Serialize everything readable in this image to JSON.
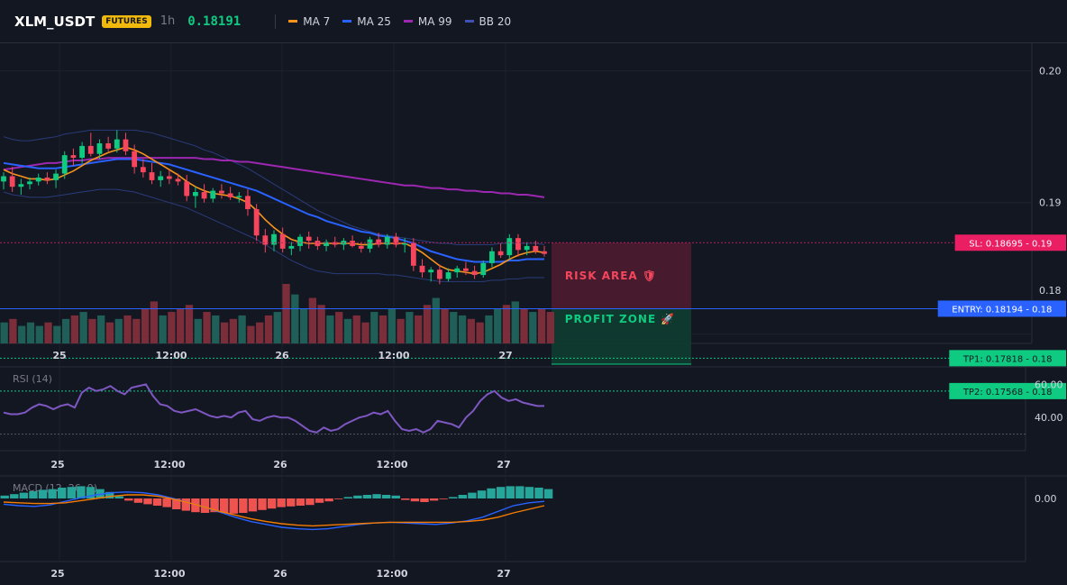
{
  "header": {
    "symbol": "XLM_USDT",
    "badge": "FUTURES",
    "timeframe": "1h",
    "last_price": "0.18191",
    "legend": [
      {
        "label": "MA 7",
        "color": "#f7931a"
      },
      {
        "label": "MA 25",
        "color": "#2962ff"
      },
      {
        "label": "MA 99",
        "color": "#9c27b0"
      },
      {
        "label": "BB 20",
        "color": "#3f51b5"
      }
    ]
  },
  "colors": {
    "up": "#0ecb81",
    "down": "#f6465d",
    "vol_up": "#1f5f58",
    "vol_down": "#7b2d3a",
    "rsi": "#7e57c2",
    "macd_line": "#2962ff",
    "signal_line": "#f57c00"
  },
  "price_axis": {
    "ticks": [
      "0.20",
      "0.19",
      "0.18"
    ]
  },
  "time_axis": {
    "labels": [
      "25",
      "12:00",
      "26",
      "12:00",
      "27"
    ]
  },
  "levels": {
    "sl": {
      "label": "SL: 0.18695",
      "axis": "0.19",
      "value": 0.18695
    },
    "entry": {
      "label": "ENTRY: 0.18194",
      "axis": "0.18",
      "value": 0.18194
    },
    "tp1": {
      "label": "TP1: 0.17818",
      "axis": "0.18",
      "value": 0.17818
    },
    "tp2": {
      "label": "TP2: 0.17568",
      "axis": "0.18",
      "value": 0.17568
    }
  },
  "zones": {
    "risk": "RISK AREA 🛡",
    "profit": "PROFIT ZONE 🚀"
  },
  "rsi": {
    "label": "RSI (14)",
    "ticks": [
      "60.00",
      "40.00"
    ]
  },
  "macd": {
    "label": "MACD (12, 26, 9)",
    "ticks": [
      "0.00"
    ]
  },
  "chart_data": {
    "type": "candlestick",
    "title": "",
    "candles": [
      [
        0.1916,
        0.1923,
        0.191,
        0.192
      ],
      [
        0.192,
        0.1927,
        0.1908,
        0.1912
      ],
      [
        0.1912,
        0.1918,
        0.1906,
        0.1914
      ],
      [
        0.1914,
        0.1919,
        0.191,
        0.1916
      ],
      [
        0.1916,
        0.1922,
        0.1913,
        0.1919
      ],
      [
        0.1919,
        0.1923,
        0.1914,
        0.1917
      ],
      [
        0.1917,
        0.1925,
        0.1911,
        0.1922
      ],
      [
        0.1922,
        0.1939,
        0.1918,
        0.1936
      ],
      [
        0.1936,
        0.1941,
        0.1928,
        0.1934
      ],
      [
        0.1934,
        0.1946,
        0.193,
        0.1943
      ],
      [
        0.1943,
        0.1953,
        0.1935,
        0.1937
      ],
      [
        0.1937,
        0.1948,
        0.1933,
        0.1945
      ],
      [
        0.1945,
        0.195,
        0.1939,
        0.1941
      ],
      [
        0.1941,
        0.1955,
        0.1938,
        0.1948
      ],
      [
        0.1948,
        0.1953,
        0.1936,
        0.1939
      ],
      [
        0.1939,
        0.1944,
        0.1922,
        0.1927
      ],
      [
        0.1927,
        0.1933,
        0.1919,
        0.1923
      ],
      [
        0.1923,
        0.193,
        0.1914,
        0.1917
      ],
      [
        0.1917,
        0.1924,
        0.1912,
        0.192
      ],
      [
        0.192,
        0.1925,
        0.1914,
        0.1918
      ],
      [
        0.1918,
        0.1922,
        0.1913,
        0.1916
      ],
      [
        0.1916,
        0.1921,
        0.1901,
        0.1905
      ],
      [
        0.1905,
        0.1912,
        0.1896,
        0.1908
      ],
      [
        0.1908,
        0.1914,
        0.19,
        0.1903
      ],
      [
        0.1903,
        0.1911,
        0.19,
        0.1909
      ],
      [
        0.1909,
        0.1914,
        0.1903,
        0.1907
      ],
      [
        0.1907,
        0.1912,
        0.1902,
        0.1904
      ],
      [
        0.1904,
        0.1908,
        0.19,
        0.1905
      ],
      [
        0.1905,
        0.191,
        0.189,
        0.1895
      ],
      [
        0.1895,
        0.1899,
        0.1871,
        0.1875
      ],
      [
        0.1875,
        0.188,
        0.1862,
        0.1868
      ],
      [
        0.1868,
        0.1879,
        0.1863,
        0.1876
      ],
      [
        0.1876,
        0.1881,
        0.1862,
        0.1865
      ],
      [
        0.1865,
        0.187,
        0.186,
        0.1867
      ],
      [
        0.1867,
        0.1876,
        0.1863,
        0.1874
      ],
      [
        0.1874,
        0.1878,
        0.1865,
        0.1871
      ],
      [
        0.1871,
        0.1874,
        0.1864,
        0.1867
      ],
      [
        0.1867,
        0.1872,
        0.1863,
        0.187
      ],
      [
        0.187,
        0.1874,
        0.1866,
        0.1868
      ],
      [
        0.1868,
        0.1873,
        0.1864,
        0.1871
      ],
      [
        0.1871,
        0.1875,
        0.1866,
        0.1867
      ],
      [
        0.1867,
        0.187,
        0.1862,
        0.1865
      ],
      [
        0.1865,
        0.1874,
        0.1862,
        0.1872
      ],
      [
        0.1872,
        0.1877,
        0.1866,
        0.1868
      ],
      [
        0.1868,
        0.1876,
        0.1865,
        0.1874
      ],
      [
        0.1874,
        0.1877,
        0.1866,
        0.1868
      ],
      [
        0.1868,
        0.1873,
        0.1862,
        0.1869
      ],
      [
        0.1869,
        0.1873,
        0.1848,
        0.1852
      ],
      [
        0.1852,
        0.1857,
        0.1843,
        0.1847
      ],
      [
        0.1847,
        0.1851,
        0.184,
        0.1849
      ],
      [
        0.1849,
        0.1853,
        0.1838,
        0.1842
      ],
      [
        0.1842,
        0.185,
        0.184,
        0.1847
      ],
      [
        0.1847,
        0.1852,
        0.1843,
        0.185
      ],
      [
        0.185,
        0.1855,
        0.1845,
        0.1848
      ],
      [
        0.1848,
        0.1852,
        0.1842,
        0.1845
      ],
      [
        0.1845,
        0.1856,
        0.1843,
        0.1854
      ],
      [
        0.1854,
        0.1866,
        0.1851,
        0.1863
      ],
      [
        0.1863,
        0.1869,
        0.1858,
        0.186
      ],
      [
        0.186,
        0.1876,
        0.1857,
        0.1873
      ],
      [
        0.1873,
        0.1876,
        0.1859,
        0.1864
      ],
      [
        0.1864,
        0.187,
        0.186,
        0.1867
      ],
      [
        0.1867,
        0.1871,
        0.1861,
        0.1863
      ],
      [
        0.1863,
        0.1867,
        0.1859,
        0.1861
      ]
    ],
    "volume": [
      6,
      7,
      5,
      6,
      5,
      6,
      5,
      7,
      8,
      9,
      7,
      8,
      6,
      7,
      8,
      7,
      10,
      12,
      8,
      9,
      10,
      11,
      7,
      9,
      8,
      6,
      7,
      8,
      5,
      6,
      8,
      9,
      17,
      14,
      10,
      13,
      11,
      8,
      9,
      7,
      8,
      6,
      9,
      8,
      10,
      7,
      9,
      8,
      11,
      13,
      10,
      9,
      8,
      7,
      6,
      8,
      10,
      11,
      12,
      10,
      9,
      10,
      9
    ],
    "ma7": [
      0.1925,
      0.1922,
      0.192,
      0.1918,
      0.1918,
      0.1917,
      0.1918,
      0.1921,
      0.1924,
      0.1928,
      0.1932,
      0.1935,
      0.1938,
      0.194,
      0.1942,
      0.194,
      0.1937,
      0.1933,
      0.1929,
      0.1925,
      0.1921,
      0.1916,
      0.1912,
      0.1909,
      0.1907,
      0.1906,
      0.1905,
      0.1903,
      0.19,
      0.1894,
      0.1887,
      0.1881,
      0.1876,
      0.1872,
      0.187,
      0.1869,
      0.1869,
      0.1869,
      0.1869,
      0.1869,
      0.1869,
      0.1868,
      0.1868,
      0.1869,
      0.1869,
      0.1869,
      0.1869,
      0.1866,
      0.1862,
      0.1857,
      0.1852,
      0.1849,
      0.1848,
      0.1847,
      0.1846,
      0.1847,
      0.185,
      0.1853,
      0.1857,
      0.186,
      0.1862,
      0.1863,
      0.1862
    ],
    "ma25": [
      0.193,
      0.1929,
      0.1928,
      0.1927,
      0.1926,
      0.1926,
      0.1926,
      0.1927,
      0.1928,
      0.1929,
      0.193,
      0.1931,
      0.1932,
      0.1933,
      0.1933,
      0.1933,
      0.1932,
      0.1931,
      0.193,
      0.1929,
      0.1927,
      0.1925,
      0.1923,
      0.1921,
      0.1919,
      0.1917,
      0.1915,
      0.1913,
      0.1911,
      0.1909,
      0.1906,
      0.1903,
      0.19,
      0.1897,
      0.1894,
      0.1891,
      0.1889,
      0.1886,
      0.1884,
      0.1882,
      0.188,
      0.1878,
      0.1877,
      0.1875,
      0.1874,
      0.1873,
      0.1871,
      0.1869,
      0.1866,
      0.1863,
      0.1861,
      0.1859,
      0.1857,
      0.1856,
      0.1855,
      0.1855,
      0.1855,
      0.1855,
      0.1856,
      0.1856,
      0.1857,
      0.1857,
      0.1857
    ],
    "ma99": [
      0.1925,
      0.1926,
      0.1927,
      0.1928,
      0.1929,
      0.193,
      0.193,
      0.1931,
      0.1932,
      0.1932,
      0.1933,
      0.1933,
      0.1934,
      0.1934,
      0.1934,
      0.1934,
      0.1934,
      0.1934,
      0.1934,
      0.1934,
      0.1934,
      0.1934,
      0.1934,
      0.1933,
      0.1933,
      0.1932,
      0.1932,
      0.1931,
      0.1931,
      0.193,
      0.1929,
      0.1928,
      0.1927,
      0.1926,
      0.1925,
      0.1924,
      0.1923,
      0.1922,
      0.1921,
      0.192,
      0.1919,
      0.1918,
      0.1917,
      0.1916,
      0.1915,
      0.1914,
      0.1913,
      0.1913,
      0.1912,
      0.1911,
      0.1911,
      0.191,
      0.191,
      0.1909,
      0.1909,
      0.1908,
      0.1908,
      0.1907,
      0.1907,
      0.1906,
      0.1906,
      0.1905,
      0.1904
    ],
    "bb_upper": [
      0.195,
      0.1948,
      0.1947,
      0.1947,
      0.1948,
      0.1949,
      0.195,
      0.1952,
      0.1953,
      0.1954,
      0.1955,
      0.1955,
      0.1955,
      0.1955,
      0.1955,
      0.1955,
      0.1954,
      0.1953,
      0.1951,
      0.1949,
      0.1947,
      0.1945,
      0.1943,
      0.194,
      0.1938,
      0.1935,
      0.1932,
      0.1929,
      0.1926,
      0.1922,
      0.1918,
      0.1914,
      0.191,
      0.1906,
      0.1902,
      0.1898,
      0.1894,
      0.1891,
      0.1888,
      0.1885,
      0.1882,
      0.188,
      0.1878,
      0.1876,
      0.1875,
      0.1874,
      0.1873,
      0.1872,
      0.1871,
      0.187,
      0.1869,
      0.1869,
      0.1868,
      0.1868,
      0.1868,
      0.1868,
      0.1868,
      0.1869,
      0.1869,
      0.1869,
      0.1869,
      0.1869,
      0.1868
    ],
    "bb_lower": [
      0.1908,
      0.1906,
      0.1905,
      0.1904,
      0.1904,
      0.1904,
      0.1905,
      0.1906,
      0.1907,
      0.1908,
      0.1909,
      0.191,
      0.191,
      0.191,
      0.1909,
      0.1908,
      0.1906,
      0.1904,
      0.1902,
      0.19,
      0.1898,
      0.1896,
      0.1893,
      0.189,
      0.1887,
      0.1884,
      0.1881,
      0.1878,
      0.1875,
      0.1872,
      0.1868,
      0.1864,
      0.186,
      0.1856,
      0.1853,
      0.185,
      0.1848,
      0.1847,
      0.1846,
      0.1846,
      0.1846,
      0.1846,
      0.1846,
      0.1846,
      0.1845,
      0.1845,
      0.1844,
      0.1843,
      0.1842,
      0.1841,
      0.184,
      0.184,
      0.184,
      0.184,
      0.184,
      0.184,
      0.1841,
      0.1841,
      0.1842,
      0.1842,
      0.1843,
      0.1843,
      0.1843
    ],
    "rsi": [
      43,
      42,
      42,
      43,
      46,
      48,
      47,
      45,
      47,
      48,
      46,
      55,
      58,
      56,
      57,
      59,
      56,
      54,
      58,
      59,
      60,
      53,
      48,
      47,
      44,
      43,
      44,
      45,
      43,
      41,
      40,
      41,
      40,
      43,
      44,
      39,
      38,
      40,
      41,
      40,
      40,
      38,
      35,
      32,
      31,
      34,
      32,
      33,
      36,
      38,
      40,
      41,
      43,
      42,
      44,
      38,
      33,
      32,
      33,
      31,
      33,
      38,
      37,
      36,
      34,
      40,
      44,
      50,
      54,
      56,
      52,
      50,
      51,
      49,
      48,
      47,
      47
    ],
    "macd_hist": [
      0.4,
      0.6,
      0.8,
      1.0,
      1.2,
      1.3,
      1.5,
      1.6,
      1.7,
      1.6,
      1.3,
      0.9,
      0.3,
      -0.3,
      -0.6,
      -0.8,
      -1.0,
      -1.2,
      -1.5,
      -1.7,
      -1.9,
      -2.0,
      -1.9,
      -2.0,
      -2.1,
      -2.0,
      -1.8,
      -1.6,
      -1.4,
      -1.2,
      -1.1,
      -1.0,
      -0.9,
      -0.6,
      -0.4,
      -0.1,
      0.2,
      0.4,
      0.5,
      0.6,
      0.5,
      0.4,
      -0.2,
      -0.4,
      -0.5,
      -0.3,
      -0.1,
      0.2,
      0.5,
      0.8,
      1.1,
      1.4,
      1.6,
      1.7,
      1.7,
      1.6,
      1.5,
      1.3
    ],
    "macd_line": [
      -0.8,
      -1.0,
      -1.1,
      -0.9,
      -0.4,
      0.1,
      0.5,
      0.8,
      0.9,
      0.8,
      0.5,
      0.0,
      -0.6,
      -1.2,
      -1.9,
      -2.6,
      -3.2,
      -3.6,
      -4.0,
      -4.2,
      -4.3,
      -4.2,
      -3.9,
      -3.6,
      -3.4,
      -3.3,
      -3.4,
      -3.5,
      -3.6,
      -3.4,
      -3.1,
      -2.6,
      -1.8,
      -1.0,
      -0.6,
      -0.4
    ],
    "signal_line": [
      -0.5,
      -0.6,
      -0.7,
      -0.7,
      -0.6,
      -0.3,
      0.0,
      0.3,
      0.5,
      0.5,
      0.3,
      -0.1,
      -0.6,
      -1.2,
      -1.8,
      -2.3,
      -2.8,
      -3.2,
      -3.5,
      -3.7,
      -3.8,
      -3.7,
      -3.6,
      -3.5,
      -3.4,
      -3.3,
      -3.3,
      -3.3,
      -3.3,
      -3.3,
      -3.2,
      -3.0,
      -2.6,
      -2.0,
      -1.5,
      -1.0
    ],
    "price_axis_range": [
      0.1793,
      0.2021
    ],
    "rsi_range": [
      20,
      70
    ],
    "rsi_ref_line": 30
  }
}
